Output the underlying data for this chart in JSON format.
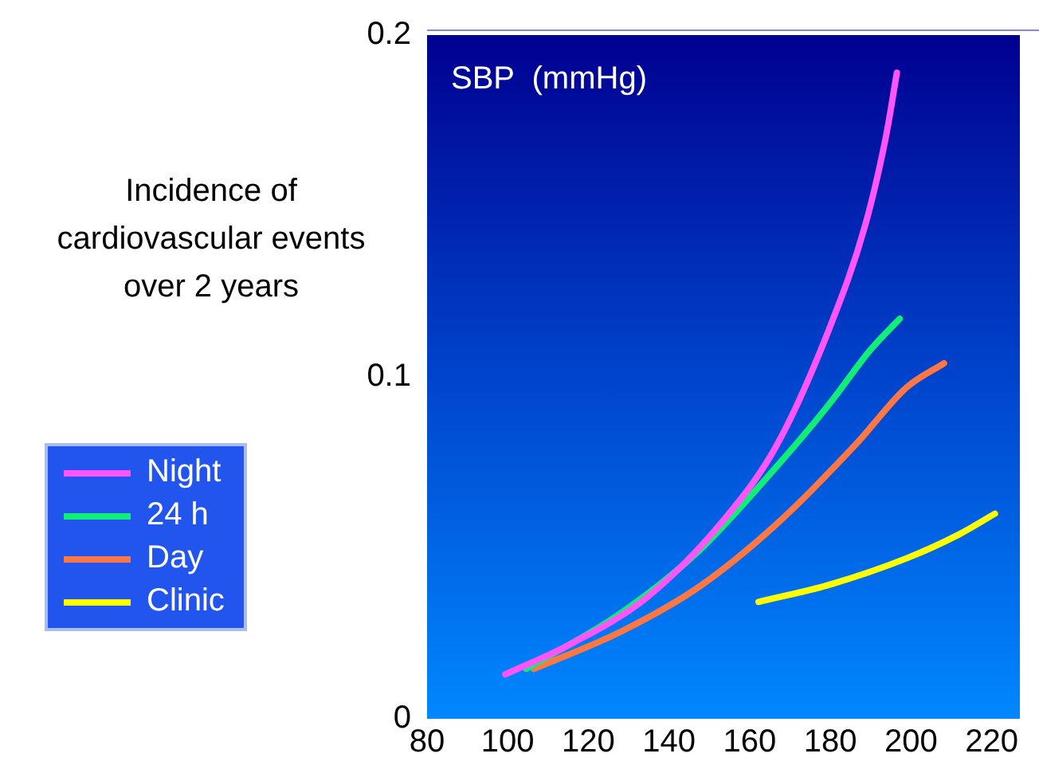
{
  "chart_data": {
    "type": "line",
    "xlabel": "SBP  (mmHg)",
    "ylabel": "Incidence of cardiovascular events over 2 years",
    "xlim": [
      80,
      227
    ],
    "xticks": [
      80,
      100,
      120,
      140,
      160,
      180,
      200,
      220
    ],
    "ylim": [
      0,
      0.2
    ],
    "yticks": [
      0,
      0.1,
      0.2
    ],
    "grid": false,
    "legend": "left",
    "marker": "none",
    "line_style": "solid",
    "series": [
      {
        "name": "Night",
        "color": "#ff55ff",
        "x": [
          99.4,
          115,
          134.4,
          153.8,
          166.7,
          179.7,
          188.7,
          193.9,
          196.5
        ],
        "values": [
          0.013,
          0.0215,
          0.0354,
          0.0585,
          0.08,
          0.114,
          0.1446,
          0.171,
          0.189
        ]
      },
      {
        "name": "24 h",
        "color": "#11ee77",
        "x": [
          104.6,
          127.9,
          147.3,
          166.7,
          179.7,
          190,
          197.2
        ],
        "values": [
          0.0146,
          0.0308,
          0.049,
          0.0738,
          0.092,
          0.108,
          0.117
        ]
      },
      {
        "name": "Day",
        "color": "#ff7744",
        "x": [
          106.5,
          127.9,
          147.3,
          166.7,
          186.1,
          199,
          208.2
        ],
        "values": [
          0.0146,
          0.0254,
          0.0385,
          0.057,
          0.08,
          0.097,
          0.104
        ]
      },
      {
        "name": "Clinic",
        "color": "#ffff00",
        "x": [
          162.2,
          179.7,
          199,
          212,
          220.8
        ],
        "values": [
          0.0342,
          0.0392,
          0.047,
          0.054,
          0.06
        ]
      }
    ]
  }
}
